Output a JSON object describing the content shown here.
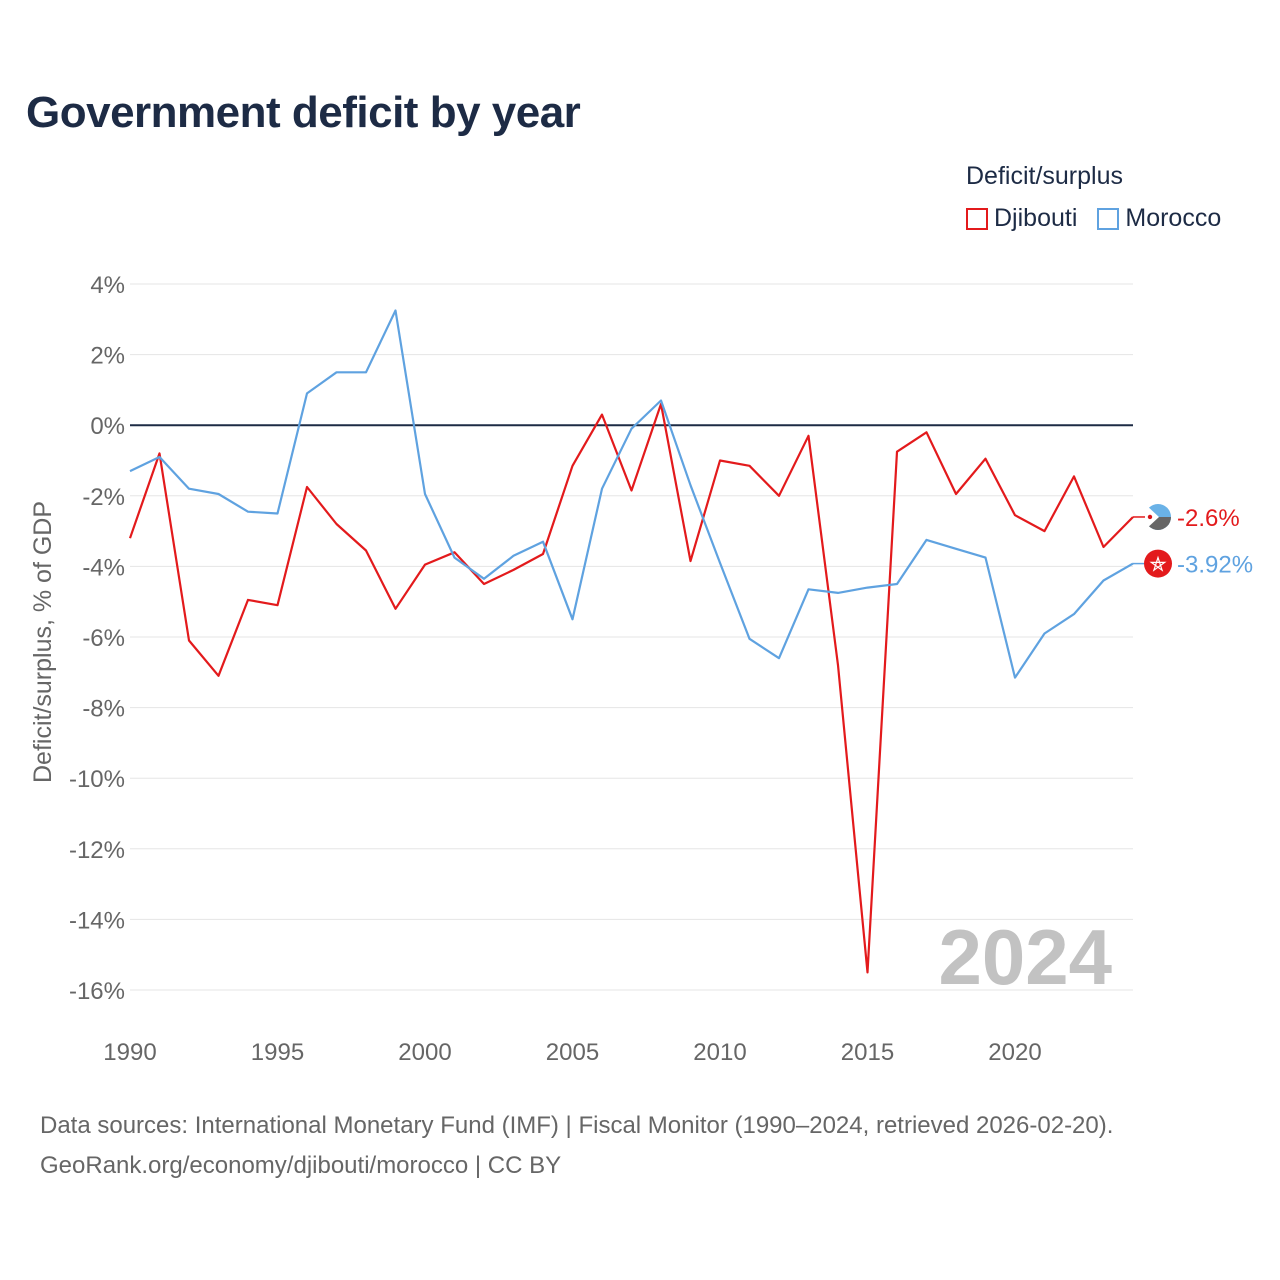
{
  "title": "Government deficit by year",
  "legend": {
    "title": "Deficit/surplus",
    "items": [
      {
        "name": "Djibouti",
        "color": "#e31a1c"
      },
      {
        "name": "Morocco",
        "color": "#5fa2e0"
      }
    ]
  },
  "footer": {
    "line1": "Data sources: International Monetary Fund (IMF) | Fiscal Monitor (1990–2024, retrieved 2026-02-20).",
    "line2": "GeoRank.org/economy/djibouti/morocco | CC BY"
  },
  "chart_data": {
    "type": "line",
    "title": "Government deficit by year",
    "xlabel": "",
    "ylabel": "Deficit/surplus, % of GDP",
    "xlim": [
      1990,
      2024
    ],
    "ylim": [
      -17,
      4
    ],
    "yticks": [
      4,
      2,
      0,
      -2,
      -4,
      -6,
      -8,
      -10,
      -12,
      -14,
      -16
    ],
    "ytick_labels": [
      "4%",
      "2%",
      "0%",
      "-2%",
      "-4%",
      "-6%",
      "-8%",
      "-10%",
      "-12%",
      "-14%",
      "-16%"
    ],
    "xticks": [
      1990,
      1995,
      2000,
      2005,
      2010,
      2015,
      2020
    ],
    "xtick_labels": [
      "1990",
      "1995",
      "2000",
      "2005",
      "2010",
      "2015",
      "2020"
    ],
    "year_watermark": "2024",
    "x": [
      1990,
      1991,
      1992,
      1993,
      1994,
      1995,
      1996,
      1997,
      1998,
      1999,
      2000,
      2001,
      2002,
      2003,
      2004,
      2005,
      2006,
      2007,
      2008,
      2009,
      2010,
      2011,
      2012,
      2013,
      2014,
      2015,
      2016,
      2017,
      2018,
      2019,
      2020,
      2021,
      2022,
      2023,
      2024
    ],
    "series": [
      {
        "name": "Djibouti",
        "color": "#e31a1c",
        "end_label": "-2.6%",
        "values": [
          -3.2,
          -0.8,
          -6.1,
          -7.1,
          -4.95,
          -5.1,
          -1.75,
          -2.8,
          -3.55,
          -5.2,
          -3.95,
          -3.6,
          -4.5,
          -4.1,
          -3.65,
          -1.15,
          0.3,
          -1.85,
          0.6,
          -3.85,
          -1.0,
          -1.15,
          -2.0,
          -0.3,
          -6.8,
          -15.5,
          -0.75,
          -0.2,
          -1.95,
          -0.95,
          -2.55,
          -3.0,
          -1.45,
          -3.45,
          -2.6
        ]
      },
      {
        "name": "Morocco",
        "color": "#5fa2e0",
        "end_label": "-3.92%",
        "values": [
          -1.3,
          -0.9,
          -1.8,
          -1.95,
          -2.45,
          -2.5,
          0.9,
          1.5,
          1.5,
          3.25,
          -1.95,
          -3.75,
          -4.35,
          -3.7,
          -3.3,
          -5.5,
          -1.8,
          -0.1,
          0.7,
          -1.7,
          -3.9,
          -6.05,
          -6.6,
          -4.65,
          -4.75,
          -4.6,
          -4.5,
          -3.25,
          -3.5,
          -3.75,
          -7.15,
          -5.9,
          -5.35,
          -4.4,
          -3.92
        ]
      }
    ]
  }
}
